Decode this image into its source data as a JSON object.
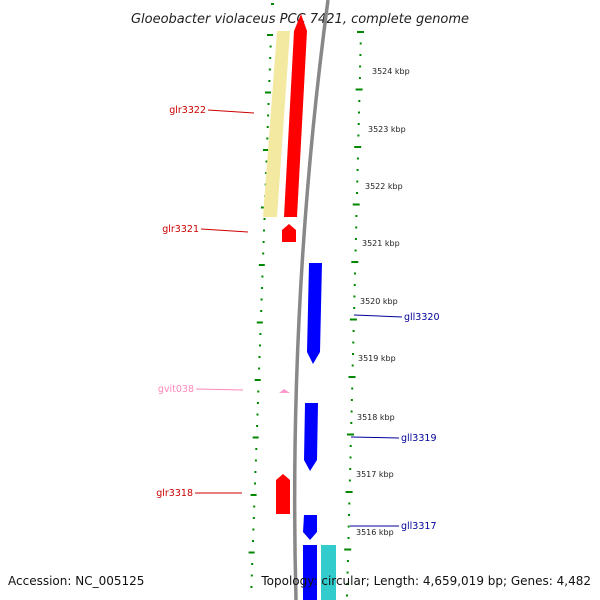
{
  "title": "Gloeobacter violaceus PCC 7421, complete genome",
  "footer": {
    "accession": "Accession: NC_005125",
    "topology": "Topology: circular; Length: 4,659,019 bp; Genes: 4,482"
  },
  "colors": {
    "forward_cds": "#ff0000",
    "reverse_cds": "#0000ff",
    "forward_rna": "#ff99cc",
    "rrna_band": "#f3e9a0",
    "cyan_band": "#33cccc",
    "backbone": "#888888",
    "tick": "#008800",
    "forward_label": "#cc0000",
    "reverse_label": "#000099",
    "rna_label": "#ff88bb"
  },
  "kbp_labels": [
    "3524 kbp",
    "3523 kbp",
    "3522 kbp",
    "3521 kbp",
    "3520 kbp",
    "3519 kbp",
    "3518 kbp",
    "3517 kbp",
    "3516 kbp"
  ],
  "gene_labels": {
    "glr3322": "glr3322",
    "glr3321": "glr3321",
    "gll3320": "gll3320",
    "gvit038": "gvit038",
    "gll3319": "gll3319",
    "glr3318": "glr3318",
    "gll3317": "gll3317"
  }
}
